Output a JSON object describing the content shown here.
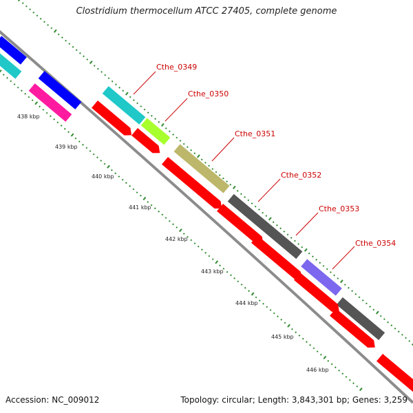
{
  "title": "Clostridium thermocellum ATCC 27405, complete genome",
  "footer": {
    "accession_label": "Accession:",
    "accession": "NC_009012",
    "topology_label": "Topology:",
    "topology": "circular",
    "length_label": "Length:",
    "length": "3,843,301 bp",
    "genes_label": "Genes:",
    "genes": "3,259"
  },
  "ticks": [
    "438 kbp",
    "439 kbp",
    "440 kbp",
    "441 kbp",
    "442 kbp",
    "443 kbp",
    "444 kbp",
    "445 kbp",
    "446 kbp"
  ],
  "gene_labels": [
    "Cthe_0349",
    "Cthe_0350",
    "Cthe_0351",
    "Cthe_0352",
    "Cthe_0353",
    "Cthe_0354"
  ],
  "colors": {
    "backbone": "#8c8c8c",
    "cds": "#ff0000",
    "label": "#cc0000",
    "tick_dots": "#2e8b2e",
    "blue": "#0000ff",
    "cyan": "#20c8c8",
    "magenta": "#ff1aa0",
    "lime": "#a8ff2e",
    "khaki": "#bdb76b",
    "dark_gray": "#555555",
    "slate_blue": "#7b68ee"
  }
}
